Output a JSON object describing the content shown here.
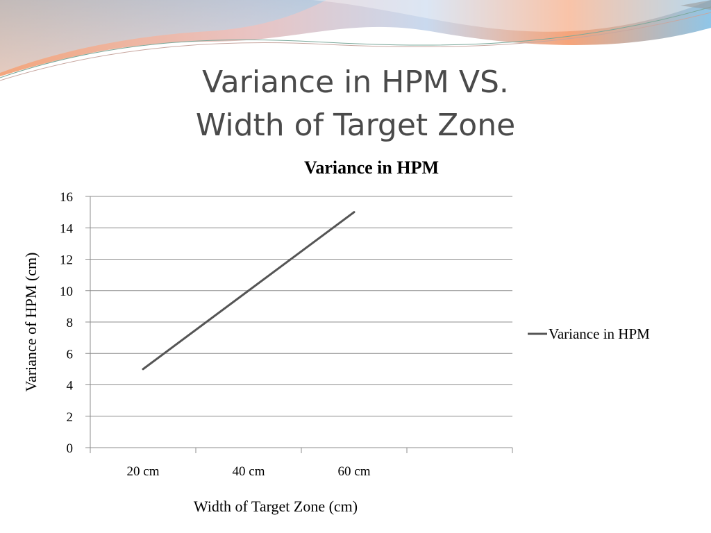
{
  "slide": {
    "title_line1": "Variance in HPM VS.",
    "title_line2": "Width of Target Zone"
  },
  "colors": {
    "series_line": "#555555",
    "gridline": "#8c8c8c",
    "axis": "#8c8c8c",
    "wave_orange": "#f0a77e",
    "wave_blue": "#8fc6e8"
  },
  "chart_data": {
    "type": "line",
    "title": "Variance in HPM",
    "xlabel": "Width of Target Zone (cm)",
    "ylabel": "Variance of HPM (cm)",
    "categories": [
      "20 cm",
      "40 cm",
      "60 cm",
      ""
    ],
    "series": [
      {
        "name": "Variance in HPM",
        "values": [
          5,
          10,
          15,
          null
        ]
      }
    ],
    "ylim": [
      0,
      16
    ],
    "yticks": [
      0,
      2,
      4,
      6,
      8,
      10,
      12,
      14,
      16
    ],
    "grid": true,
    "legend": "right"
  }
}
